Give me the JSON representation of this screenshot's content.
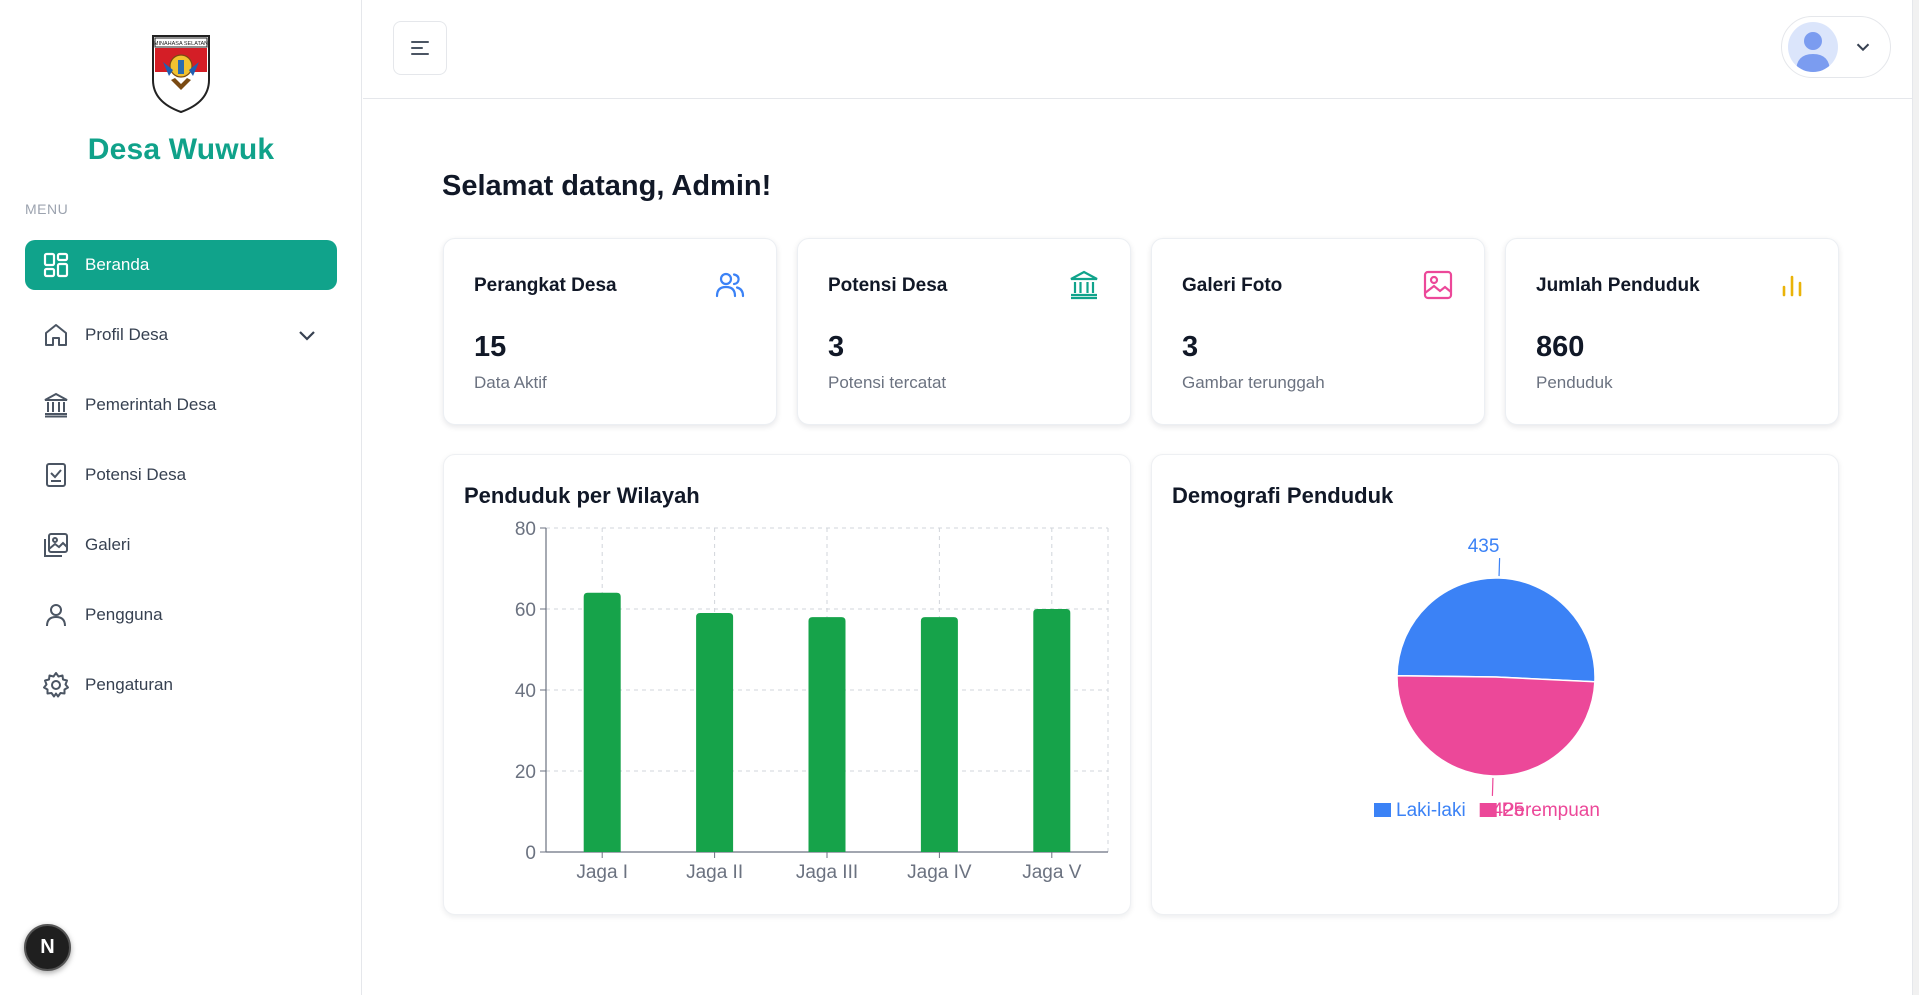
{
  "app": {
    "brand": "Desa Wuwuk",
    "crest_text": "MINAHASA SELATAN",
    "menu_label": "MENU",
    "next_badge": "N"
  },
  "sidebar": {
    "items": [
      {
        "label": "Beranda",
        "icon": "grid-icon",
        "active": true
      },
      {
        "label": "Profil Desa",
        "icon": "home-icon",
        "has_submenu": true
      },
      {
        "label": "Pemerintah Desa",
        "icon": "bank-icon"
      },
      {
        "label": "Potensi Desa",
        "icon": "checklist-icon"
      },
      {
        "label": "Galeri",
        "icon": "gallery-icon"
      },
      {
        "label": "Pengguna",
        "icon": "user-icon"
      },
      {
        "label": "Pengaturan",
        "icon": "gear-icon"
      }
    ]
  },
  "header": {
    "menu_icon": "hamburger-icon",
    "user_icon": "avatar-icon"
  },
  "main": {
    "welcome": "Selamat datang, Admin!",
    "cards": [
      {
        "title": "Perangkat Desa",
        "value": "15",
        "sub": "Data Aktif",
        "icon": "users-icon",
        "color": "#3b82f6"
      },
      {
        "title": "Potensi Desa",
        "value": "3",
        "sub": "Potensi tercatat",
        "icon": "bank-icon",
        "color": "#10a38b"
      },
      {
        "title": "Galeri Foto",
        "value": "3",
        "sub": "Gambar terunggah",
        "icon": "image-icon",
        "color": "#ec4899"
      },
      {
        "title": "Jumlah Penduduk",
        "value": "860",
        "sub": "Penduduk",
        "icon": "bar-chart-icon",
        "color": "#eab308"
      }
    ]
  },
  "colors": {
    "accent": "#10a38b",
    "bar": "#16a34a",
    "male": "#3b82f6",
    "female": "#ec4899"
  },
  "chart_data": [
    {
      "type": "bar",
      "title": "Penduduk per Wilayah",
      "categories": [
        "Jaga I",
        "Jaga II",
        "Jaga III",
        "Jaga IV",
        "Jaga V"
      ],
      "values": [
        64,
        59,
        58,
        58,
        60
      ],
      "ylim": [
        0,
        80
      ],
      "yticks": [
        0,
        20,
        40,
        60,
        80
      ],
      "grid": true,
      "xlabel": "",
      "ylabel": ""
    },
    {
      "type": "pie",
      "title": "Demografi Penduduk",
      "slices": [
        {
          "label": "Laki-laki",
          "value": 435,
          "color": "#3b82f6"
        },
        {
          "label": "Perempuan",
          "value": 425,
          "color": "#ec4899"
        }
      ],
      "legend": "bottom"
    }
  ]
}
